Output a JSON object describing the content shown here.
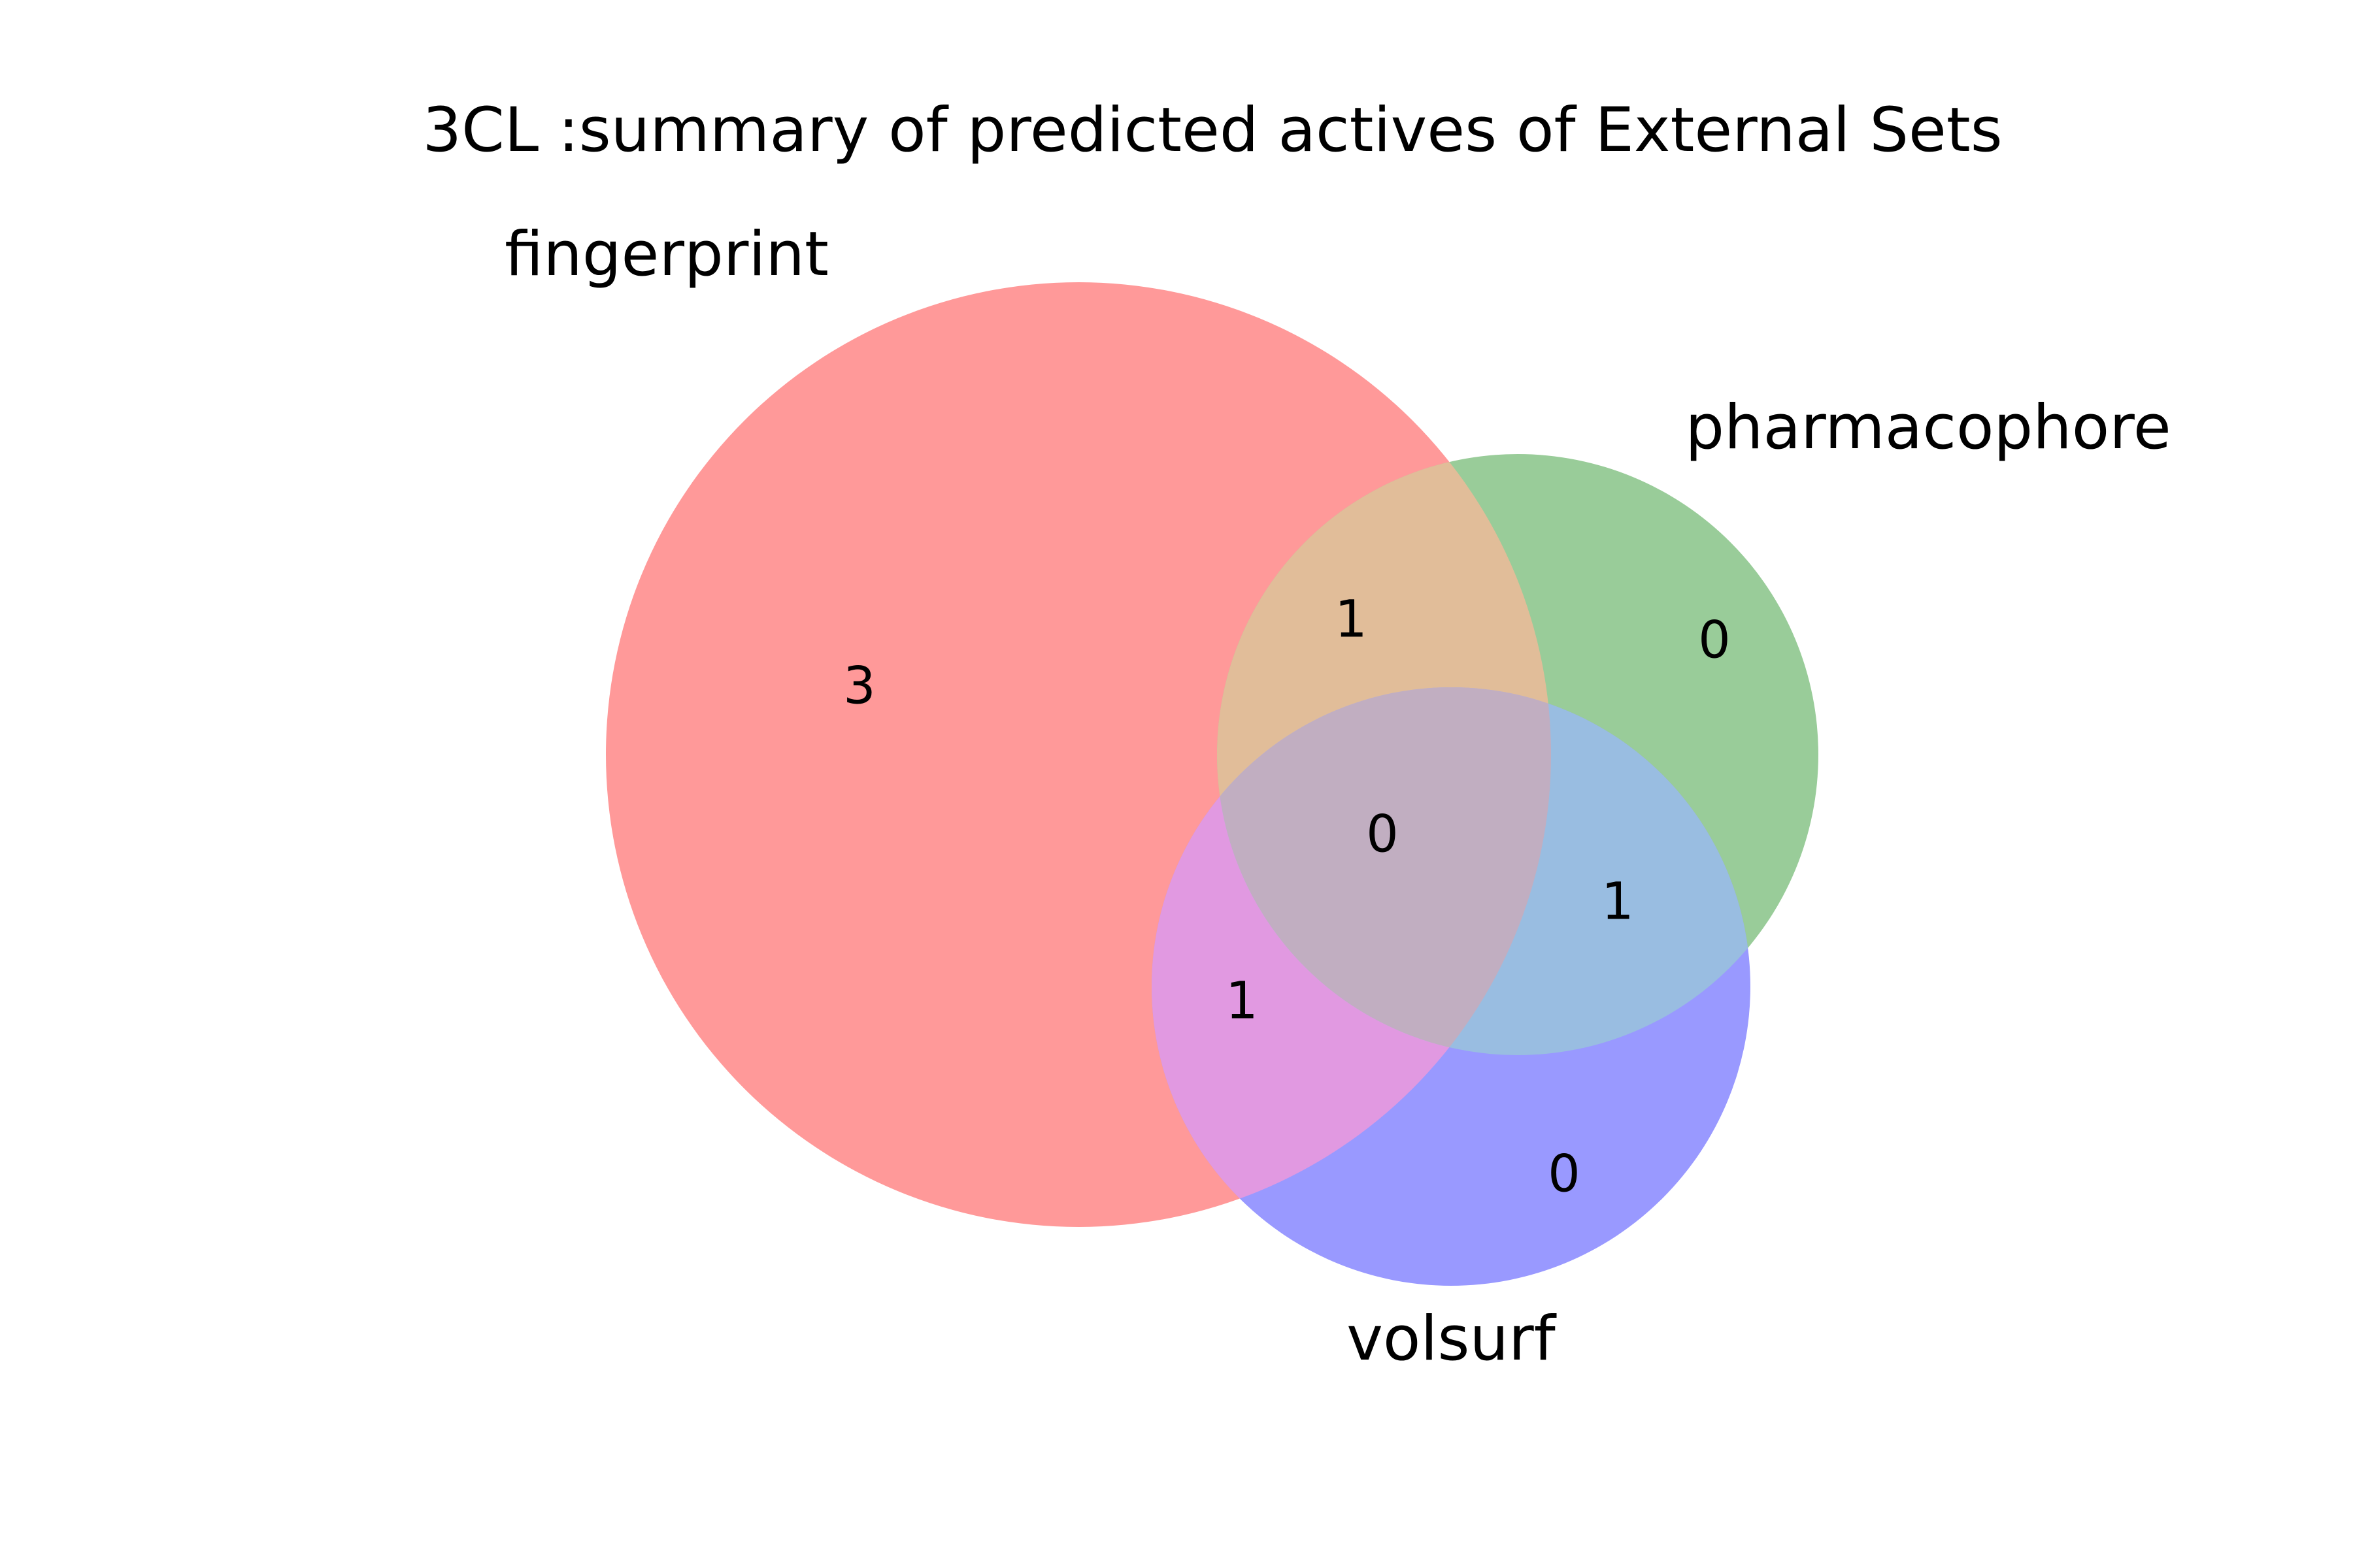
{
  "title": "3CL :summary of predicted actives of External Sets",
  "sets": [
    {
      "id": "fingerprint",
      "label": "fingerprint",
      "color": "#ff9999"
    },
    {
      "id": "pharmacophore",
      "label": "pharmacophore",
      "color": "#99cc99"
    },
    {
      "id": "volsurf",
      "label": "volsurf",
      "color": "#9999ff"
    }
  ],
  "overlap_colors": {
    "fingerprint_pharmacophore": "#e1bd99",
    "fingerprint_volsurf": "#e199e1",
    "pharmacophore_volsurf": "#99bde1",
    "all_three": "#c1aec1"
  },
  "regions": {
    "fingerprint_only": "3",
    "pharmacophore_only": "0",
    "volsurf_only": "0",
    "fingerprint_pharmacophore": "1",
    "fingerprint_volsurf": "1",
    "pharmacophore_volsurf": "1",
    "all_three": "0"
  }
}
